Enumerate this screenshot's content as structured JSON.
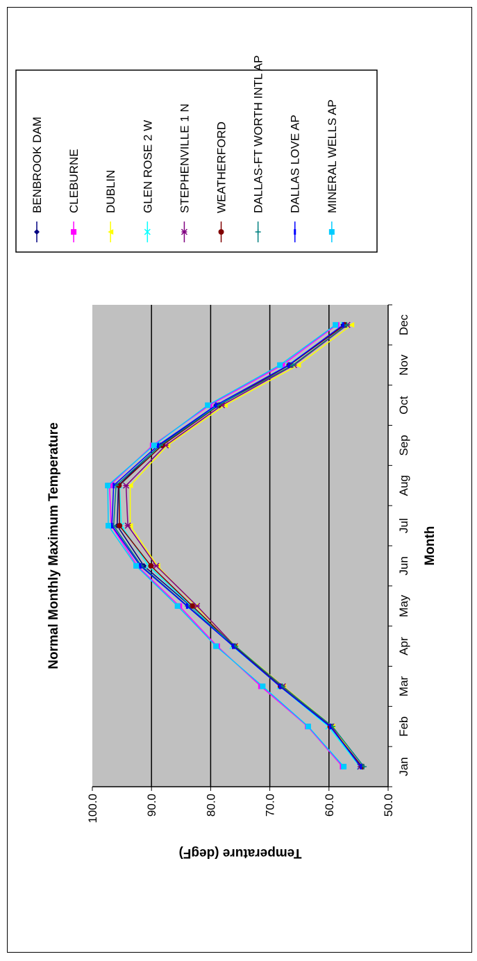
{
  "chart_data": {
    "type": "line",
    "title": "Normal Monthly Maximum Temperature",
    "xlabel": "Month",
    "ylabel": "Temperature (degF)",
    "ylim": [
      50,
      100
    ],
    "yticks": [
      "50.0",
      "60.0",
      "70.0",
      "80.0",
      "90.0",
      "100.0"
    ],
    "grid": true,
    "legend_position": "right",
    "plot_background": "#c0c0c0",
    "categories": [
      "Jan",
      "Feb",
      "Mar",
      "Apr",
      "May",
      "Jun",
      "Jul",
      "Aug",
      "Sep",
      "Oct",
      "Nov",
      "Dec"
    ],
    "series": [
      {
        "name": "BENBROOK DAM",
        "color": "#000080",
        "marker": "diamond",
        "values": [
          54.6,
          59.5,
          67.9,
          76.1,
          83.4,
          91.3,
          95.8,
          95.6,
          88.6,
          79.1,
          66.8,
          57.6
        ]
      },
      {
        "name": "CLEBURNE",
        "color": "#ff00ff",
        "marker": "square",
        "values": [
          57.7,
          63.6,
          71.5,
          78.9,
          85.3,
          92.4,
          96.8,
          97.1,
          89.8,
          80.2,
          67.9,
          58.7
        ]
      },
      {
        "name": "DUBLIN",
        "color": "#ffff00",
        "marker": "triangle",
        "values": [
          54.6,
          59.4,
          67.7,
          75.8,
          82.5,
          89.0,
          93.6,
          93.6,
          87.3,
          77.6,
          65.2,
          56.2
        ]
      },
      {
        "name": "GLEN ROSE 2 W",
        "color": "#00ffff",
        "marker": "x",
        "values": [
          54.8,
          60.1,
          68.3,
          76.3,
          83.3,
          90.5,
          95.1,
          95.4,
          88.4,
          78.8,
          66.9,
          57.5
        ]
      },
      {
        "name": "STEPHENVILLE 1 N",
        "color": "#800080",
        "marker": "star",
        "values": [
          54.7,
          59.6,
          67.8,
          75.9,
          82.3,
          89.2,
          94.0,
          94.3,
          87.6,
          78.1,
          65.9,
          56.9
        ]
      },
      {
        "name": "WEATHERFORD",
        "color": "#800000",
        "marker": "circle",
        "values": [
          54.4,
          59.8,
          68.2,
          76.0,
          83.1,
          90.1,
          95.4,
          95.5,
          88.2,
          78.6,
          66.7,
          57.3
        ]
      },
      {
        "name": "DALLAS-FT WORTH INTL AP",
        "color": "#008080",
        "marker": "plus",
        "values": [
          54.1,
          59.4,
          67.9,
          75.8,
          83.9,
          91.7,
          96.4,
          96.0,
          88.5,
          78.7,
          66.1,
          57.0
        ]
      },
      {
        "name": "DALLAS LOVE AP",
        "color": "#0000ff",
        "marker": "dash",
        "values": [
          54.6,
          59.8,
          68.3,
          76.2,
          84.0,
          91.9,
          96.7,
          96.4,
          88.9,
          79.1,
          66.8,
          57.6
        ]
      },
      {
        "name": "MINERAL WELLS AP",
        "color": "#00ccff",
        "marker": "square",
        "values": [
          57.5,
          63.5,
          71.2,
          79.1,
          85.6,
          92.6,
          97.3,
          97.4,
          89.6,
          80.5,
          68.3,
          58.9
        ]
      }
    ]
  }
}
